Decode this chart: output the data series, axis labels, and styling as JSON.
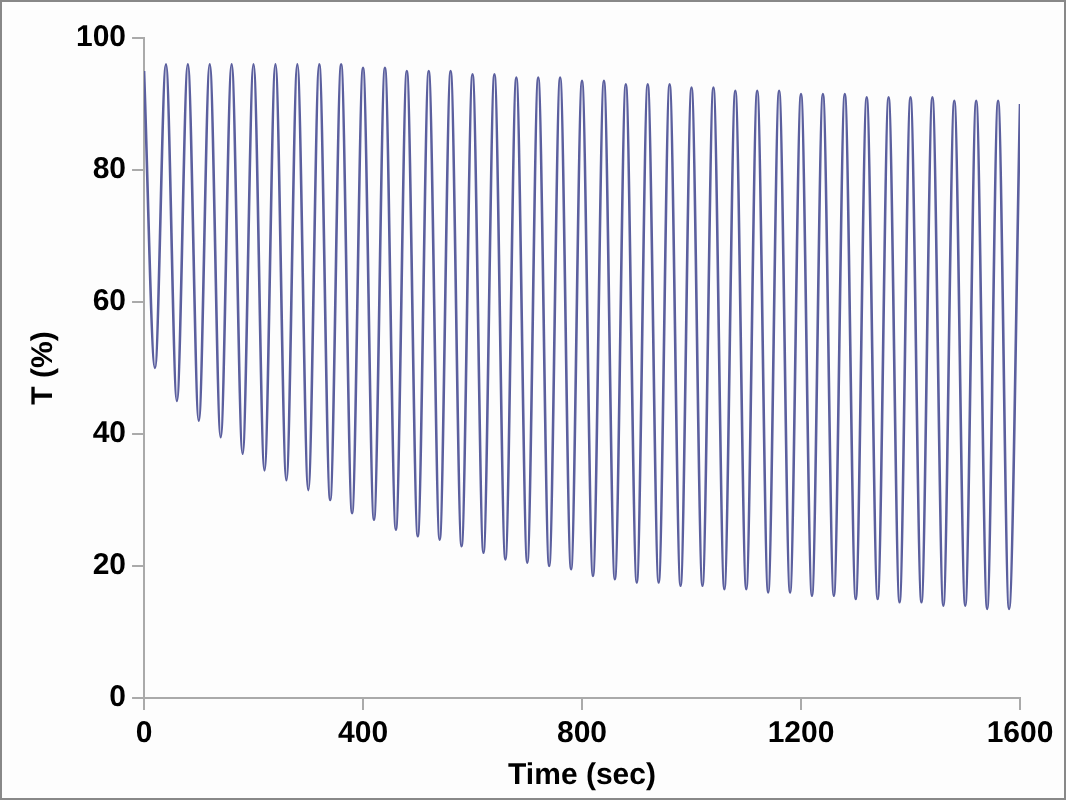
{
  "chart_data": {
    "type": "line",
    "xlabel": "Time (sec)",
    "ylabel": "T (%)",
    "x": [
      0,
      20,
      40,
      60,
      80,
      100,
      120,
      140,
      160,
      180,
      200,
      220,
      240,
      260,
      280,
      300,
      320,
      340,
      360,
      380,
      400,
      420,
      440,
      460,
      480,
      500,
      520,
      540,
      560,
      580,
      600,
      620,
      640,
      660,
      680,
      700,
      720,
      740,
      760,
      780,
      800,
      820,
      840,
      860,
      880,
      900,
      920,
      940,
      960,
      980,
      1000,
      1020,
      1040,
      1060,
      1080,
      1100,
      1120,
      1140,
      1160,
      1180,
      1200,
      1220,
      1240,
      1260,
      1280,
      1300,
      1320,
      1340,
      1360,
      1380,
      1400,
      1420,
      1440,
      1460,
      1480,
      1500,
      1520,
      1540,
      1560,
      1580,
      1600
    ],
    "series": [
      {
        "color": "#5b5f9e",
        "values": [
          95,
          50,
          96,
          45,
          96,
          42,
          96,
          39.5,
          96,
          37,
          96,
          34.5,
          96,
          33,
          96,
          31.5,
          96,
          30,
          96,
          28,
          95.5,
          27,
          95.5,
          25.5,
          95,
          24.5,
          95,
          24,
          95,
          23,
          94.5,
          22,
          94.5,
          21,
          94,
          20.5,
          94,
          20,
          94,
          19.5,
          93.5,
          18.5,
          93.5,
          18,
          93,
          17.5,
          93,
          17.5,
          93,
          17,
          92.5,
          17,
          92.5,
          16.5,
          92,
          16.5,
          92,
          16,
          92,
          16,
          91.5,
          15.5,
          91.5,
          15.5,
          91.5,
          15,
          91,
          15,
          91,
          14.5,
          91,
          14.5,
          91,
          14,
          90.5,
          14,
          90.5,
          13.5,
          90.5,
          13.5,
          90
        ]
      }
    ],
    "xlim": [
      0,
      1600
    ],
    "xticks": [
      0,
      400,
      800,
      1200,
      1600
    ],
    "ylim": [
      0,
      100
    ],
    "yticks": [
      0,
      20,
      40,
      60,
      80,
      100
    ],
    "grid": false,
    "legend": false,
    "marker": "none",
    "line_style": "solid"
  }
}
